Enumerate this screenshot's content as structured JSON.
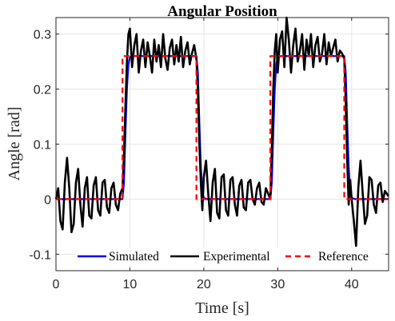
{
  "chart_data": {
    "type": "line",
    "title": "Angular Position",
    "xlabel": "Time [s]",
    "ylabel": "Angle [rad]",
    "xlim": [
      0,
      45
    ],
    "ylim": [
      -0.13,
      0.33
    ],
    "xticks": [
      0,
      10,
      20,
      30,
      40
    ],
    "yticks": [
      -0.1,
      0,
      0.1,
      0.2,
      0.3
    ],
    "xtick_labels": [
      "0",
      "10",
      "20",
      "30",
      "40"
    ],
    "ytick_labels": [
      "-0.1",
      "0",
      "0.1",
      "0.2",
      "0.3"
    ],
    "grid": true,
    "legend_position": "bottom",
    "series": [
      {
        "name": "Simulated",
        "color": "#0000ff",
        "style": "solid",
        "x": [
          0,
          9.0,
          9.2,
          9.4,
          9.6,
          9.8,
          10.0,
          10.5,
          19.0,
          19.2,
          19.4,
          19.6,
          19.8,
          20.0,
          20.5,
          29.0,
          29.2,
          29.4,
          29.6,
          29.8,
          30.0,
          30.5,
          39.0,
          39.2,
          39.4,
          39.6,
          39.8,
          40.0,
          40.5,
          45
        ],
        "y": [
          0,
          0,
          0.03,
          0.12,
          0.2,
          0.245,
          0.258,
          0.26,
          0.26,
          0.23,
          0.14,
          0.06,
          0.015,
          0.002,
          0,
          0,
          0.03,
          0.12,
          0.2,
          0.245,
          0.258,
          0.26,
          0.26,
          0.23,
          0.14,
          0.06,
          0.015,
          0.002,
          0,
          0
        ]
      },
      {
        "name": "Experimental",
        "color": "#000000",
        "style": "solid",
        "x": [
          0,
          0.3,
          0.6,
          0.9,
          1.2,
          1.5,
          1.8,
          2.1,
          2.4,
          2.7,
          3.0,
          3.3,
          3.6,
          3.9,
          4.2,
          4.5,
          4.8,
          5.1,
          5.4,
          5.7,
          6.0,
          6.3,
          6.6,
          6.9,
          7.2,
          7.5,
          7.8,
          8.1,
          8.4,
          8.7,
          9.0,
          9.2,
          9.4,
          9.6,
          9.8,
          10.0,
          10.3,
          10.6,
          10.9,
          11.2,
          11.5,
          11.8,
          12.1,
          12.4,
          12.7,
          13.0,
          13.3,
          13.6,
          13.9,
          14.2,
          14.5,
          14.8,
          15.1,
          15.4,
          15.7,
          16.0,
          16.3,
          16.6,
          16.9,
          17.2,
          17.5,
          17.8,
          18.1,
          18.4,
          18.7,
          19.0,
          19.2,
          19.4,
          19.6,
          19.8,
          20.0,
          20.3,
          20.6,
          20.9,
          21.2,
          21.5,
          21.8,
          22.1,
          22.4,
          22.7,
          23.0,
          23.3,
          23.6,
          23.9,
          24.2,
          24.5,
          24.8,
          25.1,
          25.4,
          25.7,
          26.0,
          26.3,
          26.6,
          26.9,
          27.2,
          27.5,
          27.8,
          28.1,
          28.4,
          28.7,
          29.0,
          29.2,
          29.4,
          29.6,
          29.8,
          30.0,
          30.3,
          30.6,
          30.9,
          31.2,
          31.5,
          31.8,
          32.1,
          32.4,
          32.7,
          33.0,
          33.3,
          33.6,
          33.9,
          34.2,
          34.5,
          34.8,
          35.1,
          35.4,
          35.7,
          36.0,
          36.3,
          36.6,
          36.9,
          37.2,
          37.5,
          37.8,
          38.1,
          38.4,
          38.7,
          39.0,
          39.2,
          39.4,
          39.6,
          39.8,
          40.0,
          40.3,
          40.6,
          40.9,
          41.2,
          41.5,
          41.8,
          42.1,
          42.4,
          42.7,
          43.0,
          43.3,
          43.6,
          43.9,
          44.2,
          44.5,
          45.0
        ],
        "y": [
          0.0,
          0.02,
          -0.04,
          -0.055,
          0.03,
          0.075,
          0.02,
          -0.06,
          -0.045,
          0.03,
          0.055,
          -0.01,
          -0.05,
          0.02,
          0.04,
          -0.03,
          -0.035,
          0.025,
          0.04,
          -0.02,
          -0.03,
          0.03,
          0.035,
          -0.015,
          -0.025,
          0.02,
          0.03,
          -0.01,
          -0.02,
          0.01,
          0.02,
          0.08,
          0.17,
          0.25,
          0.3,
          0.31,
          0.24,
          0.28,
          0.3,
          0.23,
          0.27,
          0.29,
          0.24,
          0.285,
          0.26,
          0.23,
          0.29,
          0.25,
          0.28,
          0.24,
          0.3,
          0.255,
          0.235,
          0.275,
          0.29,
          0.245,
          0.28,
          0.25,
          0.295,
          0.24,
          0.27,
          0.285,
          0.245,
          0.265,
          0.28,
          0.255,
          0.2,
          0.1,
          0.03,
          -0.02,
          0.04,
          0.07,
          0.01,
          -0.04,
          0.03,
          0.055,
          -0.025,
          -0.035,
          0.04,
          0.045,
          -0.02,
          -0.03,
          0.035,
          0.04,
          -0.01,
          -0.03,
          0.025,
          0.035,
          -0.015,
          -0.02,
          0.03,
          0.035,
          0.0,
          -0.01,
          0.02,
          0.03,
          -0.005,
          -0.01,
          0.02,
          0.01,
          0.0,
          0.09,
          0.2,
          0.27,
          0.3,
          0.23,
          0.29,
          0.305,
          0.24,
          0.33,
          0.29,
          0.23,
          0.28,
          0.31,
          0.25,
          0.27,
          0.3,
          0.235,
          0.29,
          0.26,
          0.3,
          0.24,
          0.28,
          0.295,
          0.25,
          0.265,
          0.3,
          0.245,
          0.285,
          0.26,
          0.275,
          0.29,
          0.25,
          0.27,
          0.265,
          0.255,
          0.18,
          0.07,
          -0.01,
          0.035,
          0.0,
          -0.04,
          -0.085,
          0.02,
          0.07,
          0.01,
          -0.045,
          -0.03,
          0.04,
          0.035,
          -0.01,
          -0.025,
          0.025,
          0.03,
          -0.005,
          0.015,
          0.005
        ]
      },
      {
        "name": "Reference",
        "color": "#ff0000",
        "style": "dashed",
        "x": [
          0,
          9,
          9,
          19,
          19,
          29,
          29,
          39,
          39,
          45
        ],
        "y": [
          0,
          0,
          0.26,
          0.26,
          0,
          0,
          0.26,
          0.26,
          0,
          0
        ]
      }
    ]
  }
}
